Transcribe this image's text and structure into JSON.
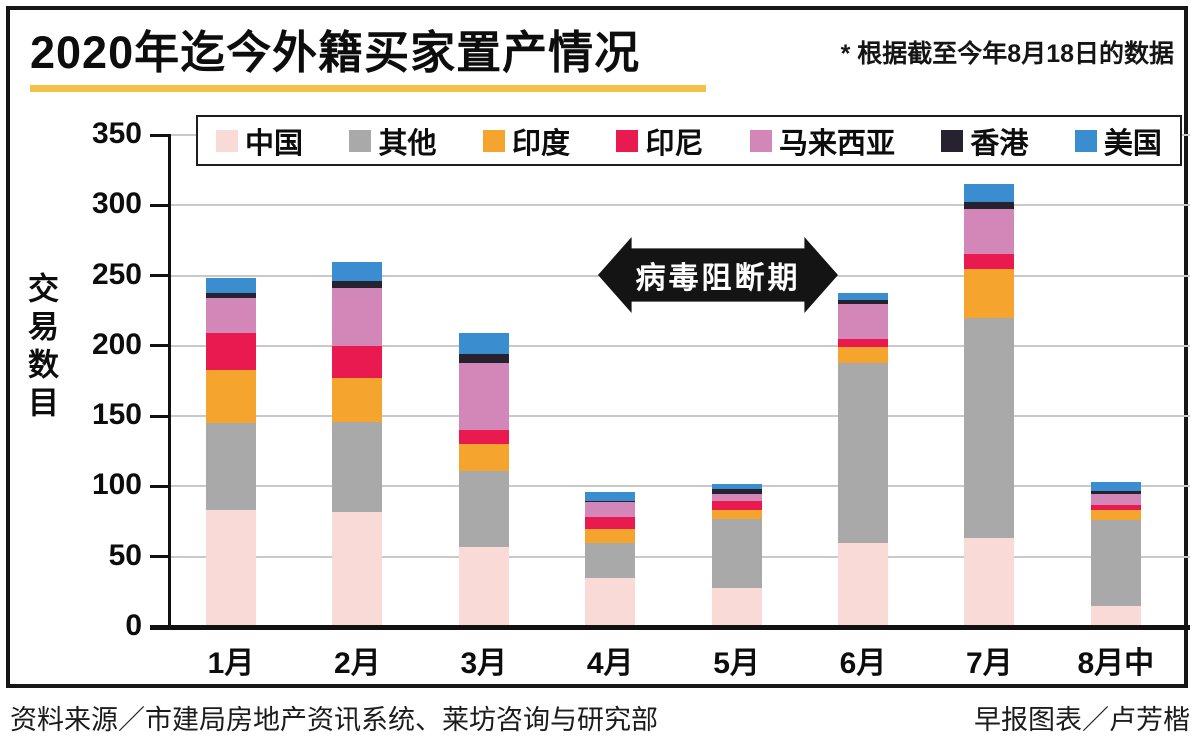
{
  "title": "2020年迄今外籍买家置产情况",
  "note": "* 根据截至今年8月18日的数据",
  "banner": "病毒阻断期",
  "y_axis_label": "交易数目",
  "footer": {
    "source": "资料来源／市建局房地产资讯系统、莱坊咨询与研究部",
    "credit": "早报图表／卢芳楷"
  },
  "colors": {
    "accent_rule": "#f2c34a",
    "frame": "#161616",
    "gridline": "#c9c9c9",
    "banner_bg": "#141414"
  },
  "chart_data": {
    "type": "bar",
    "stacked": true,
    "title": "2020年迄今外籍买家置产情况",
    "ylabel": "交易数目",
    "xlabel": "",
    "ylim": [
      0,
      350
    ],
    "yticks": [
      0,
      50,
      100,
      150,
      200,
      250,
      300,
      350
    ],
    "grid": true,
    "legend_position": "top",
    "categories": [
      "1月",
      "2月",
      "3月",
      "4月",
      "5月",
      "6月",
      "7月",
      "8月中"
    ],
    "series": [
      {
        "name": "中国",
        "color": "#f9dad6",
        "values": [
          83,
          82,
          57,
          35,
          28,
          60,
          63,
          15
        ]
      },
      {
        "name": "其他",
        "color": "#a9a9a9",
        "values": [
          62,
          64,
          54,
          25,
          49,
          128,
          157,
          61
        ]
      },
      {
        "name": "印度",
        "color": "#f5a42e",
        "values": [
          38,
          31,
          19,
          10,
          6,
          11,
          35,
          7
        ]
      },
      {
        "name": "印尼",
        "color": "#e91a4f",
        "values": [
          26,
          23,
          10,
          8,
          7,
          6,
          10,
          4
        ]
      },
      {
        "name": "马来西亚",
        "color": "#d287b8",
        "values": [
          25,
          41,
          48,
          11,
          5,
          25,
          32,
          8
        ]
      },
      {
        "name": "香港",
        "color": "#26222f",
        "values": [
          4,
          5,
          6,
          1,
          3,
          3,
          5,
          2
        ]
      },
      {
        "name": "美国",
        "color": "#3a8dce",
        "values": [
          10,
          14,
          15,
          6,
          4,
          5,
          13,
          6
        ]
      }
    ],
    "totals": [
      248,
      260,
      209,
      96,
      102,
      238,
      315,
      103
    ]
  }
}
